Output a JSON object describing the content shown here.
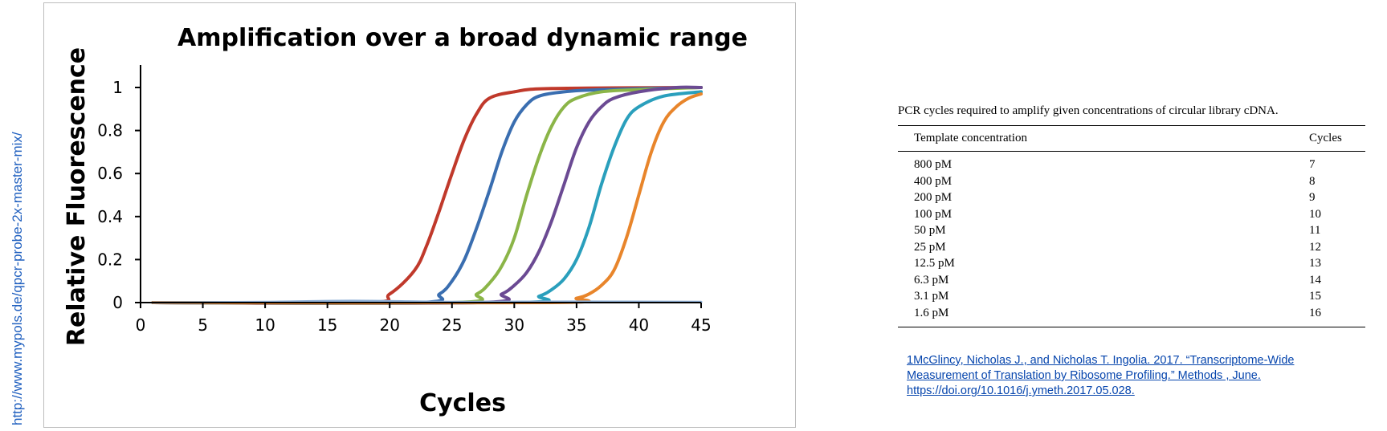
{
  "side_url": "http://www.mypols.de/qpcr-probe-2x-master-mix/",
  "chart_data": {
    "type": "line",
    "title": "Amplification over a broad dynamic range",
    "xlabel": "Cycles",
    "ylabel": "Relative Fluorescence",
    "xlim": [
      0,
      45
    ],
    "ylim": [
      0,
      1
    ],
    "x_ticks": [
      0,
      5,
      10,
      15,
      20,
      25,
      30,
      35,
      40,
      45
    ],
    "y_ticks": [
      0,
      0.2,
      0.4,
      0.6,
      0.8,
      1
    ],
    "y_tick_labels": [
      "0",
      "0.2",
      "0.4",
      "0.6",
      "0.8",
      "1"
    ],
    "grid": false,
    "legend": "none",
    "series": [
      {
        "color": "#c0392b",
        "x": [
          18,
          20,
          22,
          23,
          24,
          25,
          26,
          27,
          28,
          30,
          33,
          45
        ],
        "y": [
          0,
          0.04,
          0.15,
          0.27,
          0.43,
          0.6,
          0.76,
          0.88,
          0.95,
          0.98,
          0.995,
          1.0
        ]
      },
      {
        "color": "#3a6eb0",
        "x": [
          22,
          24,
          25,
          26,
          27,
          28,
          29,
          30,
          31,
          32,
          34,
          37,
          45
        ],
        "y": [
          0,
          0.04,
          0.1,
          0.2,
          0.35,
          0.52,
          0.7,
          0.84,
          0.92,
          0.96,
          0.98,
          0.99,
          1.0
        ]
      },
      {
        "color": "#8bb548",
        "x": [
          25,
          27,
          28,
          29,
          30,
          31,
          32,
          33,
          34,
          35,
          37,
          40,
          45
        ],
        "y": [
          0,
          0.04,
          0.09,
          0.17,
          0.3,
          0.5,
          0.68,
          0.82,
          0.91,
          0.95,
          0.98,
          0.99,
          1.0
        ]
      },
      {
        "color": "#6b4a93",
        "x": [
          27,
          29,
          30,
          31,
          32,
          33,
          34,
          35,
          36,
          37,
          38,
          40,
          43,
          45
        ],
        "y": [
          0,
          0.04,
          0.08,
          0.14,
          0.24,
          0.38,
          0.55,
          0.72,
          0.84,
          0.91,
          0.95,
          0.98,
          1.0,
          1.0
        ]
      },
      {
        "color": "#2a9fbc",
        "x": [
          30,
          32,
          33,
          34,
          35,
          36,
          37,
          38,
          39,
          40,
          42,
          45
        ],
        "y": [
          0,
          0.03,
          0.06,
          0.11,
          0.2,
          0.35,
          0.55,
          0.72,
          0.85,
          0.91,
          0.96,
          0.98
        ]
      },
      {
        "color": "#e8852b",
        "x": [
          33,
          35,
          36,
          37,
          38,
          39,
          40,
          41,
          42,
          43,
          44,
          45
        ],
        "y": [
          0,
          0.02,
          0.04,
          0.08,
          0.15,
          0.3,
          0.5,
          0.7,
          0.84,
          0.91,
          0.95,
          0.97
        ]
      },
      {
        "color": "#8fb0d6",
        "x": [
          1,
          10,
          17,
          25,
          35,
          45
        ],
        "y": [
          0,
          0.003,
          0.008,
          0.003,
          0.004,
          0.003
        ]
      }
    ]
  },
  "table": {
    "caption": "PCR cycles required to amplify given concentrations of circular library cDNA.",
    "headers": [
      "Template concentration",
      "Cycles"
    ],
    "rows": [
      [
        "800 pM",
        "7"
      ],
      [
        "400 pM",
        "8"
      ],
      [
        "200 pM",
        "9"
      ],
      [
        "100 pM",
        "10"
      ],
      [
        "50 pM",
        "11"
      ],
      [
        "25 pM",
        "12"
      ],
      [
        "12.5 pM",
        "13"
      ],
      [
        "6.3 pM",
        "14"
      ],
      [
        "3.1 pM",
        "15"
      ],
      [
        "1.6 pM",
        "16"
      ]
    ]
  },
  "citation": {
    "line1": "1McGlincy, Nicholas J., and Nicholas T. Ingolia. 2017. “Transcriptome-Wide",
    "line2": "Measurement of Translation by Ribosome Profiling.” Methods , June.",
    "line3": "https://doi.org/10.1016/j.ymeth.2017.05.028."
  }
}
